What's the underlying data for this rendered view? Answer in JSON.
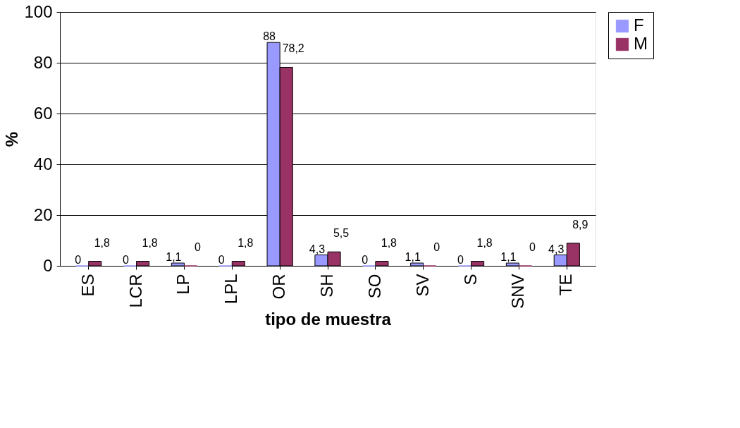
{
  "chart_data": {
    "type": "bar",
    "xlabel": "tipo de muestra",
    "ylabel": "%",
    "categories": [
      "ES",
      "LCR",
      "LP",
      "LPL",
      "OR",
      "SH",
      "SO",
      "SV",
      "S",
      "SNV",
      "TE"
    ],
    "series": [
      {
        "name": "F",
        "color": "#9999ff",
        "values": [
          0,
          0,
          1.1,
          0,
          88,
          4.3,
          0,
          1.1,
          0,
          1.1,
          4.3
        ],
        "value_labels": [
          "0",
          "0",
          "1,1",
          "0",
          "88",
          "4,3",
          "0",
          "1,1",
          "0",
          "1,1",
          "4,3"
        ]
      },
      {
        "name": "M",
        "color": "#993366",
        "values": [
          1.8,
          1.8,
          0,
          1.8,
          78.2,
          5.5,
          1.8,
          0,
          1.8,
          0,
          8.9
        ],
        "value_labels": [
          "1,8",
          "1,8",
          "0",
          "1,8",
          "78,2",
          "5,5",
          "1,8",
          "0",
          "1,8",
          "0",
          "8,9"
        ]
      }
    ],
    "ylim": [
      0,
      100
    ],
    "yticks": [
      0,
      20,
      40,
      60,
      80,
      100
    ],
    "grid": "y",
    "legend": "right"
  }
}
